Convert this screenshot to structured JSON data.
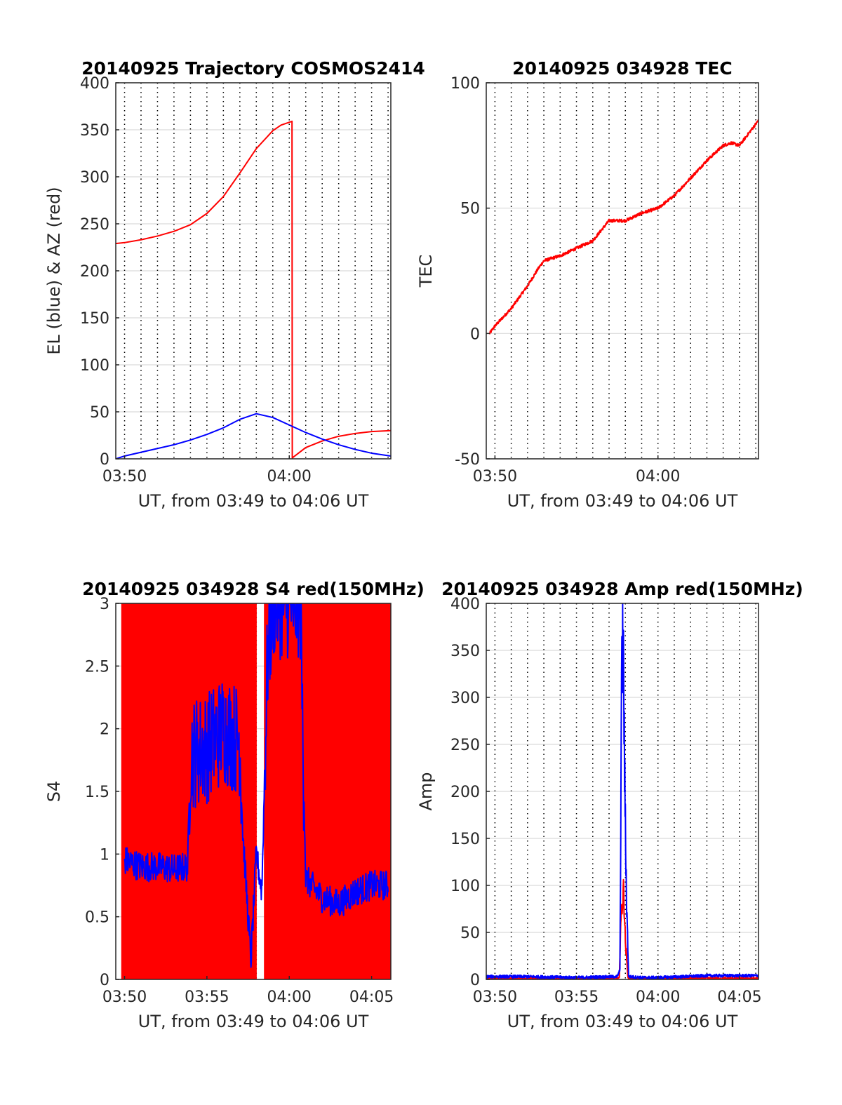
{
  "figure": {
    "colors": {
      "red": "#ff0000",
      "blue": "#0000ff",
      "axis": "#262626",
      "grid": "#d9d9d9"
    }
  },
  "chart_data": [
    {
      "type": "line",
      "title": "20140925 Trajectory COSMOS2414",
      "xlabel": "UT, from 03:49 to 04:06 UT",
      "ylabel": "EL (blue) & AZ (red)",
      "xlim": [
        "03:49:28",
        "04:06:10"
      ],
      "ylim": [
        0,
        400
      ],
      "xticks": [
        "03:50",
        "04:00"
      ],
      "yticks": [
        0,
        50,
        100,
        150,
        200,
        250,
        300,
        350,
        400
      ],
      "grid": "dotted time grid every 1 minute, horizontal grid every 50",
      "series": [
        {
          "color": "#ff0000",
          "x": [
            "03:49:28",
            "03:50:00",
            "03:51:00",
            "03:52:00",
            "03:53:00",
            "03:54:00",
            "03:55:00",
            "03:56:00",
            "03:57:00",
            "03:58:00",
            "03:59:00",
            "03:59:30",
            "04:00:10",
            "04:00:11",
            "04:01:00",
            "04:02:00",
            "04:03:00",
            "04:04:00",
            "04:05:00",
            "04:06:10"
          ],
          "values": [
            229,
            230,
            233,
            237,
            242,
            249,
            261,
            279,
            304,
            330,
            349,
            355,
            359,
            1,
            12,
            19,
            24,
            27,
            29,
            30
          ]
        },
        {
          "color": "#0000ff",
          "x": [
            "03:49:28",
            "03:50:00",
            "03:51:00",
            "03:52:00",
            "03:53:00",
            "03:54:00",
            "03:55:00",
            "03:56:00",
            "03:57:00",
            "03:58:00",
            "03:59:00",
            "04:00:00",
            "04:01:00",
            "04:02:00",
            "04:03:00",
            "04:04:00",
            "04:05:00",
            "04:06:10"
          ],
          "values": [
            0,
            3,
            7,
            11,
            15,
            20,
            26,
            33,
            42,
            48,
            44,
            36,
            28,
            21,
            15,
            10,
            6,
            3
          ]
        }
      ]
    },
    {
      "type": "line",
      "title": "20140925 034928 TEC",
      "xlabel": "UT, from 03:49 to 04:06 UT",
      "ylabel": "TEC",
      "xlim": [
        "03:49:28",
        "04:06:10"
      ],
      "ylim": [
        -50,
        100
      ],
      "xticks": [
        "03:50",
        "04:00"
      ],
      "yticks": [
        -50,
        0,
        50,
        100
      ],
      "grid": "dotted time grid every 1 minute, horizontal grid every 50",
      "series": [
        {
          "color": "#ff0000",
          "x": [
            "03:49:40",
            "03:50:00",
            "03:51:00",
            "03:52:00",
            "03:52:40",
            "03:53:00",
            "03:54:00",
            "03:55:00",
            "03:56:00",
            "03:57:00",
            "03:58:00",
            "03:59:00",
            "04:00:00",
            "04:01:00",
            "04:02:00",
            "04:03:00",
            "04:04:00",
            "04:04:30",
            "04:05:00",
            "04:06:10"
          ],
          "values": [
            0,
            3,
            10,
            19,
            26,
            29,
            31,
            34,
            37,
            45,
            45,
            48,
            50,
            55,
            62,
            69,
            75,
            76,
            75,
            85
          ]
        }
      ]
    },
    {
      "type": "line",
      "title": "20140925 034928 S4 red(150MHz)",
      "xlabel": "UT, from 03:49 to 04:06 UT",
      "ylabel": "S4",
      "xlim": [
        "03:49:28",
        "04:06:10"
      ],
      "ylim": [
        0,
        3
      ],
      "xticks": [
        "03:50",
        "03:55",
        "04:00",
        "04:05"
      ],
      "yticks": [
        0,
        0.5,
        1,
        1.5,
        2,
        2.5,
        3
      ],
      "grid": "dotted time grid every 1 minute, horizontal grid every 0.5",
      "red_fill": {
        "description": "dense red spikes filling 0-3",
        "ranges": [
          [
            "03:49:50",
            "03:58:00"
          ],
          [
            "03:58:30",
            "04:06:10"
          ]
        ]
      },
      "series": [
        {
          "color": "#0000ff",
          "x": [
            "03:50:00",
            "03:51:00",
            "03:52:00",
            "03:53:00",
            "03:53:50",
            "03:54:00",
            "03:55:00",
            "03:56:00",
            "03:57:00",
            "03:57:10",
            "03:57:40",
            "03:58:00",
            "03:58:20",
            "03:58:40",
            "03:59:00",
            "04:00:00",
            "04:00:40",
            "04:01:00",
            "04:02:00",
            "04:03:00",
            "04:04:00",
            "04:05:00",
            "04:06:00"
          ],
          "values": [
            0.95,
            0.9,
            0.9,
            0.88,
            0.9,
            1.8,
            1.85,
            2.0,
            1.9,
            1.2,
            0.15,
            1.0,
            0.7,
            2.5,
            3.0,
            3.0,
            3.0,
            0.8,
            0.65,
            0.6,
            0.7,
            0.75,
            0.75
          ]
        }
      ]
    },
    {
      "type": "line",
      "title": "20140925 034928 Amp red(150MHz)",
      "xlabel": "UT, from 03:49 to 04:06 UT",
      "ylabel": "Amp",
      "xlim": [
        "03:49:28",
        "04:06:10"
      ],
      "ylim": [
        0,
        400
      ],
      "xticks": [
        "03:50",
        "03:55",
        "04:00",
        "04:05"
      ],
      "yticks": [
        0,
        50,
        100,
        150,
        200,
        250,
        300,
        350,
        400
      ],
      "grid": "dotted time grid every 1 minute, horizontal grid every 50",
      "series": [
        {
          "color": "#ff0000",
          "x": [
            "03:49:28",
            "03:57:38",
            "03:57:42",
            "03:57:48",
            "03:57:54",
            "03:58:00",
            "03:58:10",
            "04:06:10"
          ],
          "values": [
            1,
            1,
            55,
            80,
            95,
            40,
            1,
            1
          ]
        },
        {
          "color": "#0000ff",
          "x": [
            "03:49:28",
            "03:52:00",
            "03:55:00",
            "03:57:30",
            "03:57:40",
            "03:57:45",
            "03:57:50",
            "03:57:54",
            "03:57:58",
            "03:58:04",
            "03:58:12",
            "03:59:00",
            "04:00:00",
            "04:03:00",
            "04:06:10"
          ],
          "values": [
            3,
            3,
            2,
            3,
            10,
            272,
            372,
            310,
            200,
            90,
            3,
            2,
            2,
            4,
            4
          ]
        }
      ]
    }
  ]
}
